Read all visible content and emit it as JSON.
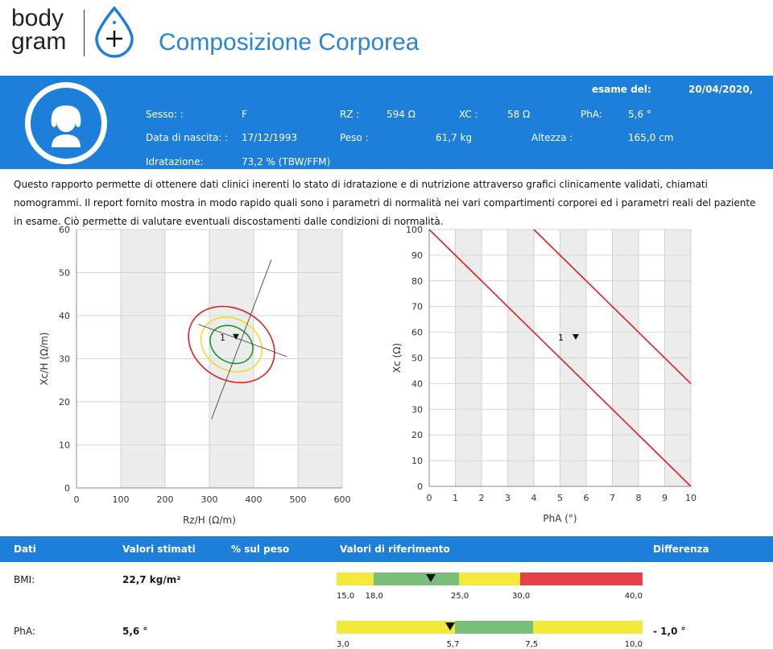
{
  "logo": {
    "line1": "body",
    "line2": "gram"
  },
  "title": "Composizione Corporea",
  "exam": {
    "label": "esame del:",
    "date": "20/04/2020,"
  },
  "patient": {
    "sesso_label": "Sesso: :",
    "sesso": "F",
    "rz_label": "RZ :",
    "rz": "594 Ω",
    "xc_label": "XC :",
    "xc": "58 Ω",
    "pha_label": "PhA:",
    "pha": "5,6 °",
    "nascita_label": "Data di nascita: :",
    "nascita": "17/12/1993",
    "peso_label": "Peso :",
    "peso": "61,7 kg",
    "altezza_label": "Altezza :",
    "altezza": "165,0 cm",
    "idratazione_label": "Idratazione:",
    "idratazione": "73,2 % (TBW/FFM)"
  },
  "intro": "Questo rapporto permette di ottenere dati clinici inerenti lo stato di idratazione e di nutrizione attraverso grafici clinicamente validati, chiamati nomogrammi. Il report fornito mostra in modo rapido quali sono i parametri di normalità nei vari compartimenti corporei ed i parametri reali del paziente in esame. Ciò permette di valutare eventuali discostamenti dalle condizioni di normalità.",
  "chart_data": [
    {
      "type": "scatter",
      "xlabel": "Rz/H (Ω/m)",
      "ylabel": "Xc/H (Ω/m)",
      "xlim": [
        0,
        600
      ],
      "ylim": [
        0,
        60
      ],
      "xticks": [
        0,
        100,
        200,
        300,
        400,
        500,
        600
      ],
      "yticks": [
        0,
        10,
        20,
        30,
        40,
        50,
        60
      ],
      "point": {
        "label": "1",
        "x": 360,
        "y": 35
      },
      "colors": {
        "outer": "#e02020",
        "middle": "#e8e020",
        "inner": "#1a9a2a",
        "axis": "#555555"
      }
    },
    {
      "type": "scatter",
      "xlabel": "PhA (°)",
      "ylabel": "Xc (Ω)",
      "xlim": [
        0,
        10
      ],
      "ylim": [
        0,
        100
      ],
      "xticks": [
        0,
        1,
        2,
        3,
        4,
        5,
        6,
        7,
        8,
        9,
        10
      ],
      "yticks": [
        0,
        10,
        20,
        30,
        40,
        50,
        60,
        70,
        80,
        90,
        100
      ],
      "point": {
        "label": "1",
        "x": 5.6,
        "y": 58
      },
      "lines": [
        {
          "from": [
            0,
            100
          ],
          "to": [
            10,
            0
          ]
        },
        {
          "from": [
            4,
            100
          ],
          "to": [
            10,
            40
          ]
        }
      ],
      "colors": {
        "line": "#e02020"
      }
    }
  ],
  "table": {
    "headers": {
      "dati": "Dati",
      "valori": "Valori stimati",
      "peso": "% sul peso",
      "riferimento": "Valori di riferimento",
      "differenza": "Differenza"
    },
    "rows": [
      {
        "label": "BMI:",
        "value": "22,7 kg/m²",
        "diff": "",
        "scale_min": 15,
        "scale_max": 40,
        "marker": 22.7,
        "segments": [
          {
            "from": 15,
            "to": 18,
            "color": "#f2e93a"
          },
          {
            "from": 18,
            "to": 25,
            "color": "#79bf7a"
          },
          {
            "from": 25,
            "to": 30,
            "color": "#f2e93a"
          },
          {
            "from": 30,
            "to": 40,
            "color": "#e5404a"
          }
        ],
        "ticks": [
          "15,0",
          "18,0",
          "25,0",
          "30,0",
          "40,0"
        ],
        "tick_vals": [
          15,
          18,
          25,
          30,
          40
        ]
      },
      {
        "label": "PhA:",
        "value": "5,6 °",
        "diff": "- 1,0 °",
        "scale_min": 3,
        "scale_max": 10,
        "marker": 5.6,
        "segments": [
          {
            "from": 3,
            "to": 5.7,
            "color": "#f2e93a"
          },
          {
            "from": 5.7,
            "to": 7.5,
            "color": "#79bf7a"
          },
          {
            "from": 7.5,
            "to": 10,
            "color": "#f2e93a"
          }
        ],
        "ticks": [
          "3,0",
          "5,7",
          "7,5",
          "10,0"
        ],
        "tick_vals": [
          3,
          5.7,
          7.5,
          10
        ]
      }
    ]
  }
}
